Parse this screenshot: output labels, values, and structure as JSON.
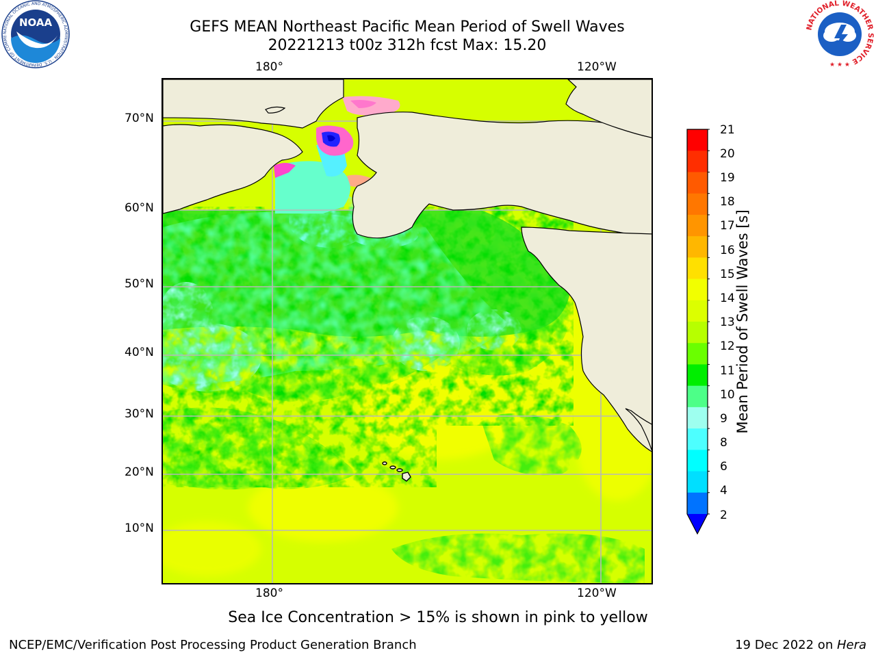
{
  "header": {
    "title_line1": "GEFS MEAN Northeast Pacific Mean Period of Swell Waves",
    "title_line2": "20221213 t00z 312h fcst   Max: 15.20"
  },
  "logos": {
    "noaa": {
      "text": "NOAA",
      "ring_text": "NATIONAL OCEANIC AND ATMOSPHERIC ADMINISTRATION · U.S. DEPARTMENT OF COMMERCE ·"
    },
    "nws": {
      "ring_text": "NATIONAL WEATHER SERVICE"
    }
  },
  "map": {
    "top_lon_labels": [
      "180°",
      "120°W"
    ],
    "bottom_lon_labels": [
      "180°",
      "120°W"
    ],
    "lat_labels": [
      "70°N",
      "60°N",
      "50°N",
      "40°N",
      "30°N",
      "20°N",
      "10°N"
    ],
    "land_color": "#efedda",
    "grid_color": "#b8b8b8"
  },
  "colorbar": {
    "label": "Mean Period of Swell Waves [s]",
    "ticks": [
      "21",
      "20",
      "19",
      "18",
      "17",
      "16",
      "15",
      "14",
      "13",
      "12",
      "11",
      "10",
      "9",
      "8",
      "6",
      "4",
      "2"
    ],
    "colors_top_to_bottom": [
      "#ff0000",
      "#ff2e00",
      "#ff5a00",
      "#ff7700",
      "#ff9500",
      "#ffb700",
      "#ffe000",
      "#f2ff00",
      "#dcff00",
      "#b7ff00",
      "#6aff00",
      "#00ee00",
      "#4dff88",
      "#9effef",
      "#4dffff",
      "#00ffff",
      "#00dfff",
      "#0073ff"
    ],
    "extend_min_color": "#0000ff"
  },
  "annotation": "Sea Ice Concentration > 15% is shown in pink to yellow",
  "footer": {
    "left": "NCEP/EMC/Verification Post Processing Product Generation Branch",
    "right_prefix": "19 Dec 2022 on ",
    "right_host": "Hera"
  }
}
